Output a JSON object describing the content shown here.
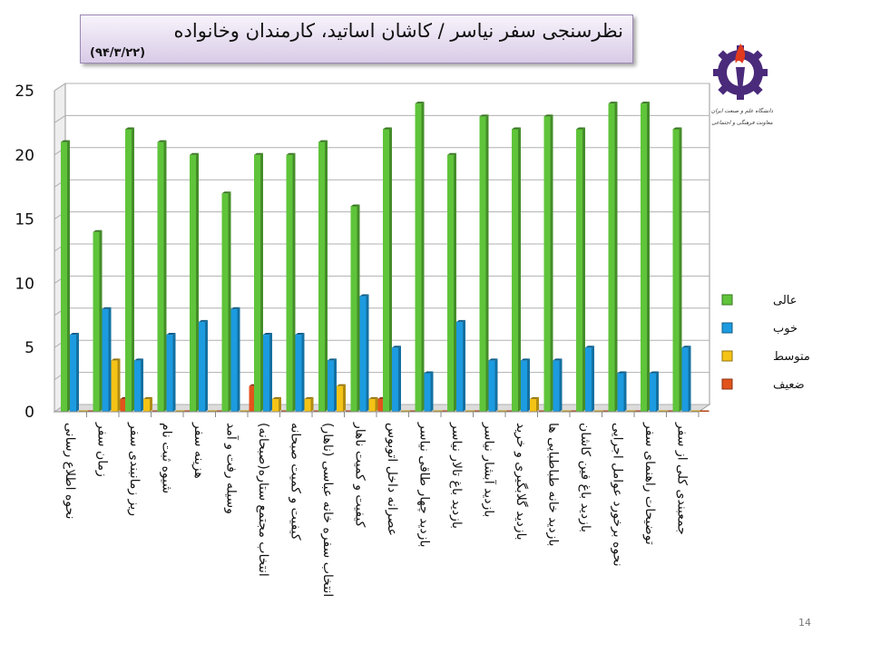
{
  "slide": {
    "title": "نظرسنجی سفر نیاسر / کاشان اساتید، کارمندان وخانواده",
    "date": "(۹۴/۳/۲۲)",
    "page_number": "14"
  },
  "logo": {
    "line1": "دانشگاه علم و صنعت ایران",
    "line2": "معاونت فرهنگی و اجتماعی"
  },
  "chart_data": {
    "type": "bar",
    "categories": [
      "نحوه اطلاع رسانی",
      "زمان سفر",
      "ریز زمانبندی سفر",
      "شیوه ثبت نام",
      "هزینه سفر",
      "وسیله رفت و آمد",
      "انتخاب مجتمع ستاره(صبحانه)",
      "کیفیت و کمیت صبحانه",
      "انتخاب سفره خانه عباسی (ناهار)",
      "کیفیت و کمیت ناهار",
      "عصرانه داخل اتوبوس",
      "بازدید چهار طاقی نیاسر",
      "بازدید باغ تالار نیاسر",
      "بازدید آبشار نیاسر",
      "بازدید گلابگیری و خرید",
      "بازدید خانه طباطبایی ها",
      "بازدید باغ فین کاشان",
      "نحوه برخورد عوامل اجرایی",
      "توضیحات راهنمای سفر",
      "جمعبندی کلی از سفر"
    ],
    "series": [
      {
        "name": "عالی",
        "color": "#5fc43a",
        "values": [
          21,
          14,
          22,
          21,
          20,
          17,
          20,
          20,
          21,
          16,
          22,
          24,
          20,
          23,
          22,
          23,
          22,
          24,
          24,
          22
        ]
      },
      {
        "name": "خوب",
        "color": "#1c9be0",
        "values": [
          6,
          8,
          4,
          6,
          7,
          8,
          6,
          6,
          4,
          9,
          5,
          3,
          7,
          4,
          4,
          4,
          5,
          3,
          3,
          5
        ]
      },
      {
        "name": "متوسط",
        "color": "#f5c316",
        "values": [
          0,
          4,
          1,
          0,
          0,
          0,
          1,
          1,
          2,
          1,
          0,
          0,
          0,
          0,
          1,
          0,
          0,
          0,
          0,
          0
        ]
      },
      {
        "name": "ضعیف",
        "color": "#e2531c",
        "values": [
          0,
          1,
          0,
          0,
          0,
          2,
          0,
          0,
          0,
          1,
          0,
          0,
          0,
          0,
          0,
          0,
          0,
          0,
          0,
          0
        ]
      }
    ],
    "yticks": [
      "0",
      "5",
      "10",
      "15",
      "20",
      "25"
    ],
    "ylim": [
      0,
      25
    ],
    "grid": true,
    "legend": "right"
  }
}
